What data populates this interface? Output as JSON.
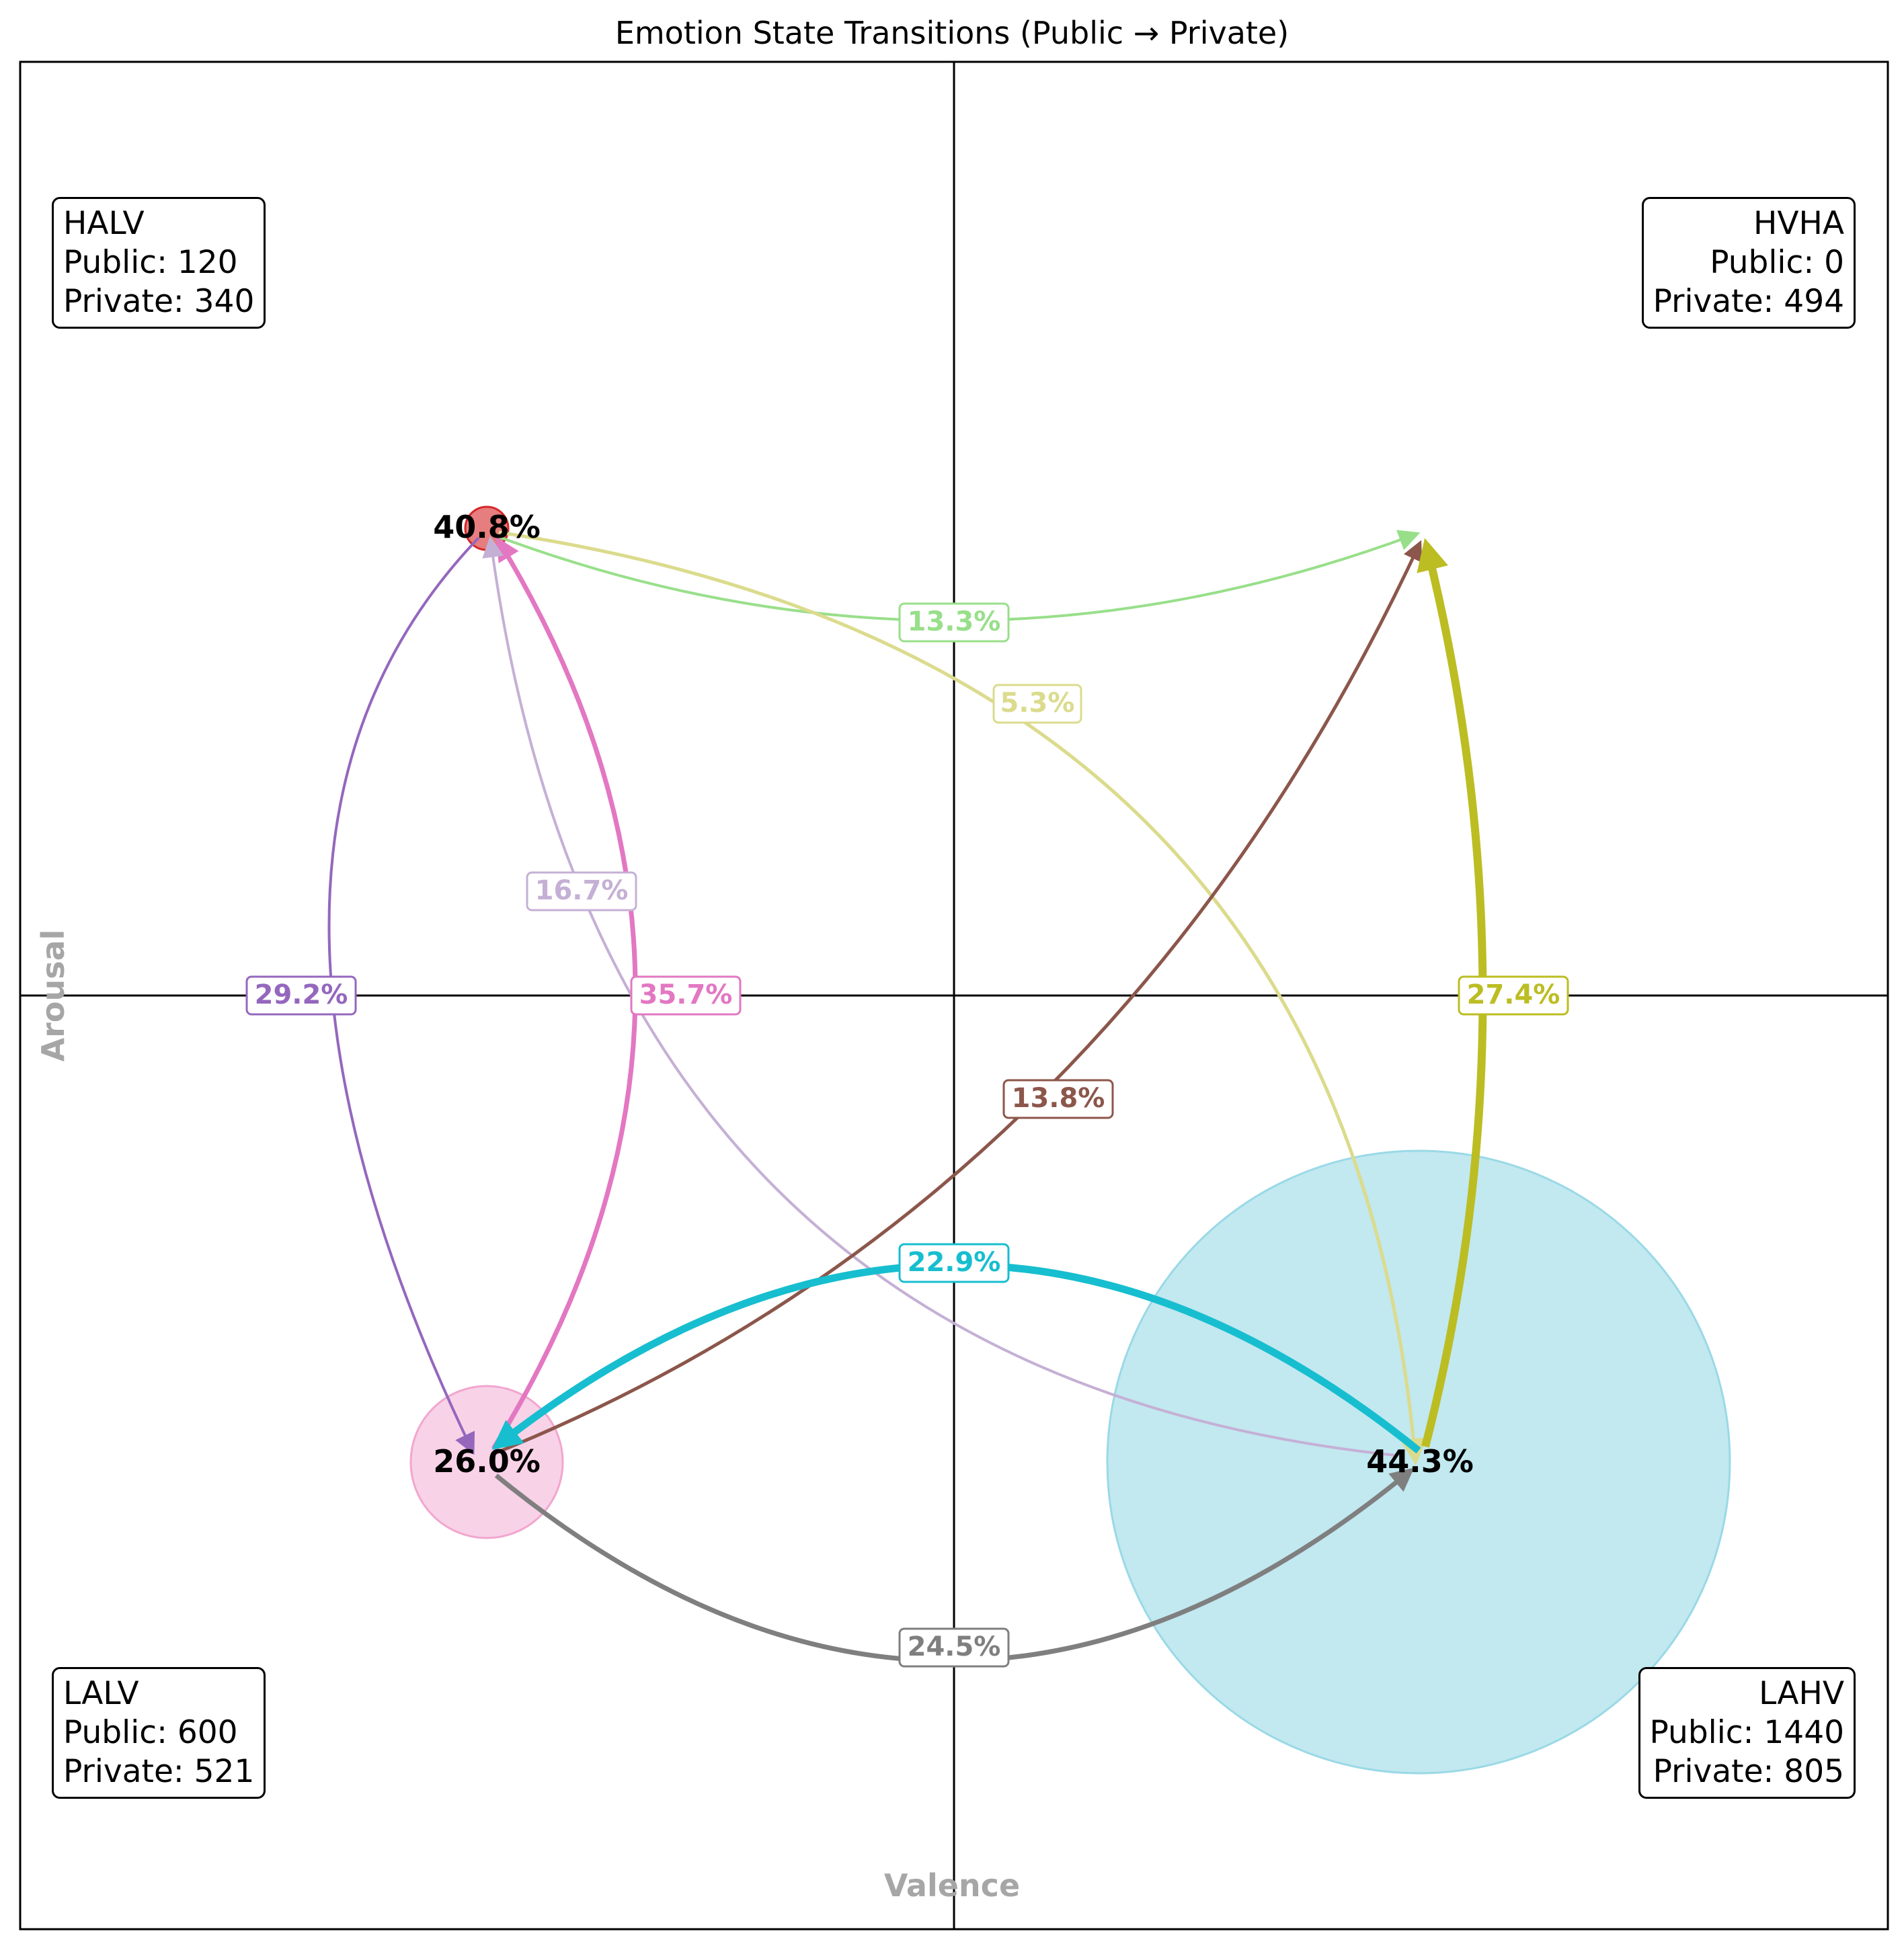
{
  "title": "Emotion State Transitions (Public → Private)",
  "axes": {
    "xlabel": "Valence",
    "ylabel": "Arousal",
    "label_color": "#a6a6a6"
  },
  "quadrants": {
    "halv": {
      "name": "HALV",
      "public": "Public: 120",
      "private": "Private: 340"
    },
    "hvha": {
      "name": "HVHA",
      "public": "Public: 0",
      "private": "Private: 494"
    },
    "lalv": {
      "name": "LALV",
      "public": "Public: 600",
      "private": "Private: 521"
    },
    "lahv": {
      "name": "LAHV",
      "public": "Public: 1440",
      "private": "Private: 805"
    }
  },
  "nodes": [
    {
      "id": "HALV",
      "label": "40.8%",
      "color": "#d62728",
      "opacity": 0.6,
      "size": "small"
    },
    {
      "id": "LALV",
      "label": "26.0%",
      "color": "#f2a6cf",
      "opacity": 0.5,
      "size": "medium"
    },
    {
      "id": "LAHV",
      "label": "44.3%",
      "color": "#9ad9e6",
      "opacity": 0.6,
      "size": "large"
    }
  ],
  "edges": [
    {
      "from": "HALV",
      "to": "HVHA",
      "label": "13.3%",
      "color": "#98df8a"
    },
    {
      "from": "HALV",
      "to": "LALV",
      "label": "29.2%",
      "color": "#9467bd"
    },
    {
      "from": "LALV",
      "to": "HALV",
      "label": "35.7%",
      "color": "#e377c2"
    },
    {
      "from": "LAHV",
      "to": "HALV",
      "label": "16.7%",
      "color": "#c5b0d5"
    },
    {
      "from": "HALV",
      "to": "LAHV",
      "label": "5.3%",
      "color": "#dbdb8d"
    },
    {
      "from": "LALV",
      "to": "HVHA",
      "label": "13.8%",
      "color": "#8c564b"
    },
    {
      "from": "LAHV",
      "to": "HVHA",
      "label": "27.4%",
      "color": "#bcbd22"
    },
    {
      "from": "LAHV",
      "to": "LALV",
      "label": "22.9%",
      "color": "#17becf"
    },
    {
      "from": "LALV",
      "to": "LAHV",
      "label": "24.5%",
      "color": "#7f7f7f"
    }
  ]
}
